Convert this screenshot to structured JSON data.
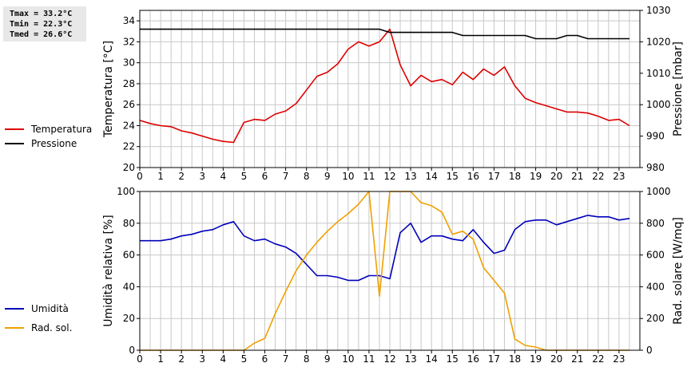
{
  "stats": {
    "tmax": "Tmax = 33.2°C",
    "tmin": "Tmin = 22.3°C",
    "tmed": "Tmed = 26.6°C"
  },
  "colors": {
    "temperature": "#dd0000",
    "pressure": "#000000",
    "humidity": "#0000bb",
    "radiation": "#f0a000",
    "grid": "#c8c8c8"
  },
  "chart_data": [
    {
      "type": "line",
      "x": [
        0,
        0.5,
        1,
        1.5,
        2,
        2.5,
        3,
        3.5,
        4,
        4.5,
        5,
        5.5,
        6,
        6.5,
        7,
        7.5,
        8,
        8.5,
        9,
        9.5,
        10,
        10.5,
        11,
        11.5,
        12,
        12.5,
        13,
        13.5,
        14,
        14.5,
        15,
        15.5,
        16,
        16.5,
        17,
        17.5,
        18,
        18.5,
        19,
        19.5,
        20,
        20.5,
        21,
        21.5,
        22,
        22.5,
        23,
        23.5
      ],
      "xlim": [
        0,
        24
      ],
      "xticks": [
        "0",
        "1",
        "2",
        "3",
        "4",
        "5",
        "6",
        "7",
        "8",
        "9",
        "10",
        "11",
        "12",
        "13",
        "14",
        "15",
        "16",
        "17",
        "18",
        "19",
        "20",
        "21",
        "22",
        "23"
      ],
      "ylabel": "Temperatura [°C]",
      "ylim": [
        20,
        35
      ],
      "yticks": [
        "20",
        "22",
        "24",
        "26",
        "28",
        "30",
        "32",
        "34"
      ],
      "y2label": "Pressione [mbar]",
      "y2lim": [
        980,
        1030
      ],
      "y2ticks": [
        "980",
        "990",
        "1000",
        "1010",
        "1020",
        "1030"
      ],
      "grid": true,
      "legend_position": "left",
      "series": [
        {
          "name": "Temperatura",
          "axis": "left",
          "values": [
            24.5,
            24.2,
            24.0,
            23.9,
            23.5,
            23.3,
            23.0,
            22.7,
            22.5,
            22.4,
            24.3,
            24.6,
            24.5,
            25.1,
            25.4,
            26.1,
            27.4,
            28.7,
            29.1,
            29.9,
            31.3,
            32.0,
            31.6,
            32.0,
            33.2,
            29.8,
            27.8,
            28.8,
            28.2,
            28.4,
            27.9,
            29.1,
            28.4,
            29.4,
            28.8,
            29.6,
            27.8,
            26.6,
            26.2,
            25.9,
            25.6,
            25.3,
            25.3,
            25.2,
            24.9,
            24.5,
            24.6,
            24.0
          ]
        },
        {
          "name": "Pressione",
          "axis": "right",
          "values": [
            1024,
            1024,
            1024,
            1024,
            1024,
            1024,
            1024,
            1024,
            1024,
            1024,
            1024,
            1024,
            1024,
            1024,
            1024,
            1024,
            1024,
            1024,
            1024,
            1024,
            1024,
            1024,
            1024,
            1024,
            1023,
            1023,
            1023,
            1023,
            1023,
            1023,
            1023,
            1022,
            1022,
            1022,
            1022,
            1022,
            1022,
            1022,
            1021,
            1021,
            1021,
            1022,
            1022,
            1021,
            1021,
            1021,
            1021,
            1021
          ]
        }
      ]
    },
    {
      "type": "line",
      "x": [
        0,
        0.5,
        1,
        1.5,
        2,
        2.5,
        3,
        3.5,
        4,
        4.5,
        5,
        5.5,
        6,
        6.5,
        7,
        7.5,
        8,
        8.5,
        9,
        9.5,
        10,
        10.5,
        11,
        11.5,
        12,
        12.5,
        13,
        13.5,
        14,
        14.5,
        15,
        15.5,
        16,
        16.5,
        17,
        17.5,
        18,
        18.5,
        19,
        19.5,
        20,
        20.5,
        21,
        21.5,
        22,
        22.5,
        23,
        23.5
      ],
      "xlim": [
        0,
        24
      ],
      "xticks": [
        "0",
        "1",
        "2",
        "3",
        "4",
        "5",
        "6",
        "7",
        "8",
        "9",
        "10",
        "11",
        "12",
        "13",
        "14",
        "15",
        "16",
        "17",
        "18",
        "19",
        "20",
        "21",
        "22",
        "23"
      ],
      "ylabel": "Umidità relativa [%]",
      "ylim": [
        0,
        100
      ],
      "yticks": [
        "0",
        "20",
        "40",
        "60",
        "80",
        "100"
      ],
      "y2label": "Rad. solare [W/mq]",
      "y2lim": [
        0,
        1000
      ],
      "y2ticks": [
        "0",
        "200",
        "400",
        "600",
        "800",
        "1000"
      ],
      "grid": true,
      "legend_position": "left",
      "series": [
        {
          "name": "Umidità",
          "axis": "left",
          "values": [
            69,
            69,
            69,
            70,
            72,
            73,
            75,
            76,
            79,
            81,
            72,
            69,
            70,
            67,
            65,
            61,
            54,
            47,
            47,
            46,
            44,
            44,
            47,
            47,
            45,
            74,
            80,
            68,
            72,
            72,
            70,
            69,
            76,
            68,
            61,
            63,
            76,
            81,
            82,
            82,
            79,
            81,
            83,
            85,
            84,
            84,
            82,
            83
          ]
        },
        {
          "name": "Rad. sol.",
          "axis": "right",
          "values": [
            0,
            0,
            0,
            0,
            0,
            0,
            0,
            0,
            0,
            0,
            0,
            45,
            75,
            230,
            370,
            500,
            600,
            680,
            750,
            810,
            860,
            920,
            1020,
            340,
            1020,
            1020,
            1010,
            930,
            910,
            870,
            730,
            750,
            700,
            520,
            440,
            360,
            70,
            30,
            20,
            0,
            0,
            0,
            0,
            0,
            0,
            0,
            0,
            0
          ]
        }
      ]
    }
  ]
}
